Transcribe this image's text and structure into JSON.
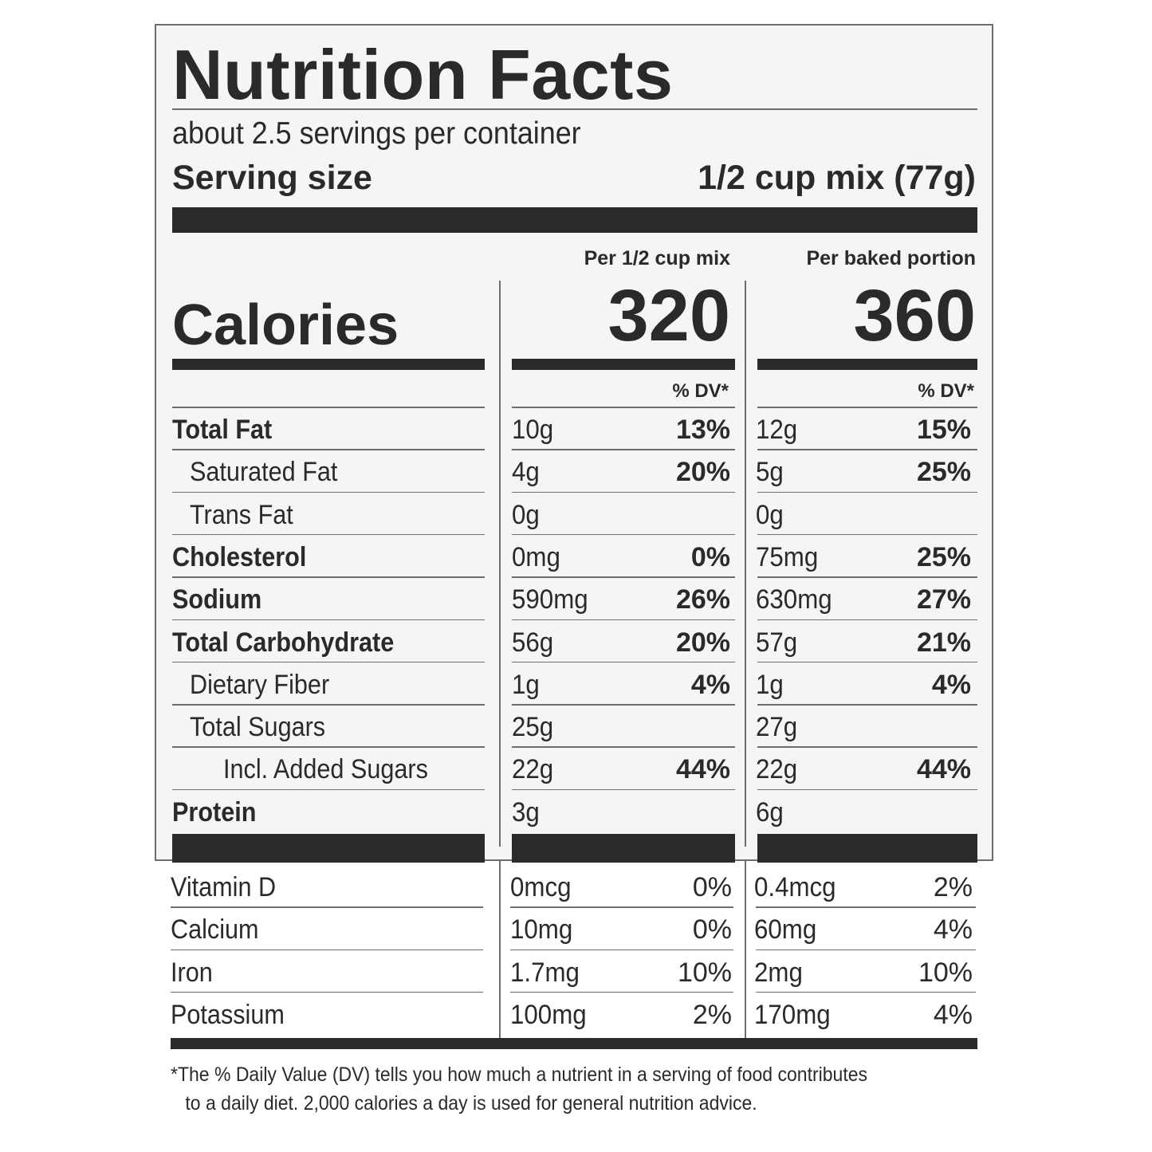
{
  "title": "Nutrition Facts",
  "servings_per_container": "about 2.5 servings per container",
  "serving_size_label": "Serving size",
  "serving_size_value": "1/2 cup mix (77g)",
  "col1_header": "Per 1/2 cup mix",
  "col2_header": "Per baked portion",
  "calories_label": "Calories",
  "calories_col1": "320",
  "calories_col2": "360",
  "dv_header_col1": "% DV*",
  "dv_header_col2": "% DV*",
  "nutrients": [
    {
      "name": "Total Fat",
      "bold": true,
      "indent": 0,
      "amt1": "10g",
      "dv1": "13%",
      "amt2": "12g",
      "dv2": "15%"
    },
    {
      "name": "Saturated Fat",
      "bold": false,
      "indent": 1,
      "amt1": "4g",
      "dv1": "20%",
      "amt2": "5g",
      "dv2": "25%"
    },
    {
      "name": "Trans Fat",
      "bold": false,
      "indent": 1,
      "amt1": "0g",
      "dv1": "",
      "amt2": "0g",
      "dv2": ""
    },
    {
      "name": "Cholesterol",
      "bold": true,
      "indent": 0,
      "amt1": "0mg",
      "dv1": "0%",
      "amt2": "75mg",
      "dv2": "25%"
    },
    {
      "name": "Sodium",
      "bold": true,
      "indent": 0,
      "amt1": "590mg",
      "dv1": "26%",
      "amt2": "630mg",
      "dv2": "27%"
    },
    {
      "name": "Total Carbohydrate",
      "bold": true,
      "indent": 0,
      "amt1": "56g",
      "dv1": "20%",
      "amt2": "57g",
      "dv2": "21%"
    },
    {
      "name": "Dietary Fiber",
      "bold": false,
      "indent": 1,
      "amt1": "1g",
      "dv1": "4%",
      "amt2": "1g",
      "dv2": "4%"
    },
    {
      "name": "Total Sugars",
      "bold": false,
      "indent": 1,
      "amt1": "25g",
      "dv1": "",
      "amt2": "27g",
      "dv2": ""
    },
    {
      "name": "Incl. Added Sugars",
      "bold": false,
      "indent": 2,
      "amt1": "22g",
      "dv1": "44%",
      "amt2": "22g",
      "dv2": "44%"
    },
    {
      "name": "Protein",
      "bold": true,
      "indent": 0,
      "amt1": "3g",
      "dv1": "",
      "amt2": "6g",
      "dv2": ""
    }
  ],
  "vitamins": [
    {
      "name": "Vitamin D",
      "amt1": "0mcg",
      "dv1": "0%",
      "amt2": "0.4mcg",
      "dv2": "2%"
    },
    {
      "name": "Calcium",
      "amt1": "10mg",
      "dv1": "0%",
      "amt2": "60mg",
      "dv2": "4%"
    },
    {
      "name": "Iron",
      "amt1": "1.7mg",
      "dv1": "10%",
      "amt2": "2mg",
      "dv2": "10%"
    },
    {
      "name": "Potassium",
      "amt1": "100mg",
      "dv1": "2%",
      "amt2": "170mg",
      "dv2": "4%"
    }
  ],
  "footnote_line1": "*The % Daily Value (DV) tells you how much a nutrient in a serving of food contributes",
  "footnote_line2": "to a daily diet. 2,000 calories a day is used for general nutrition advice."
}
